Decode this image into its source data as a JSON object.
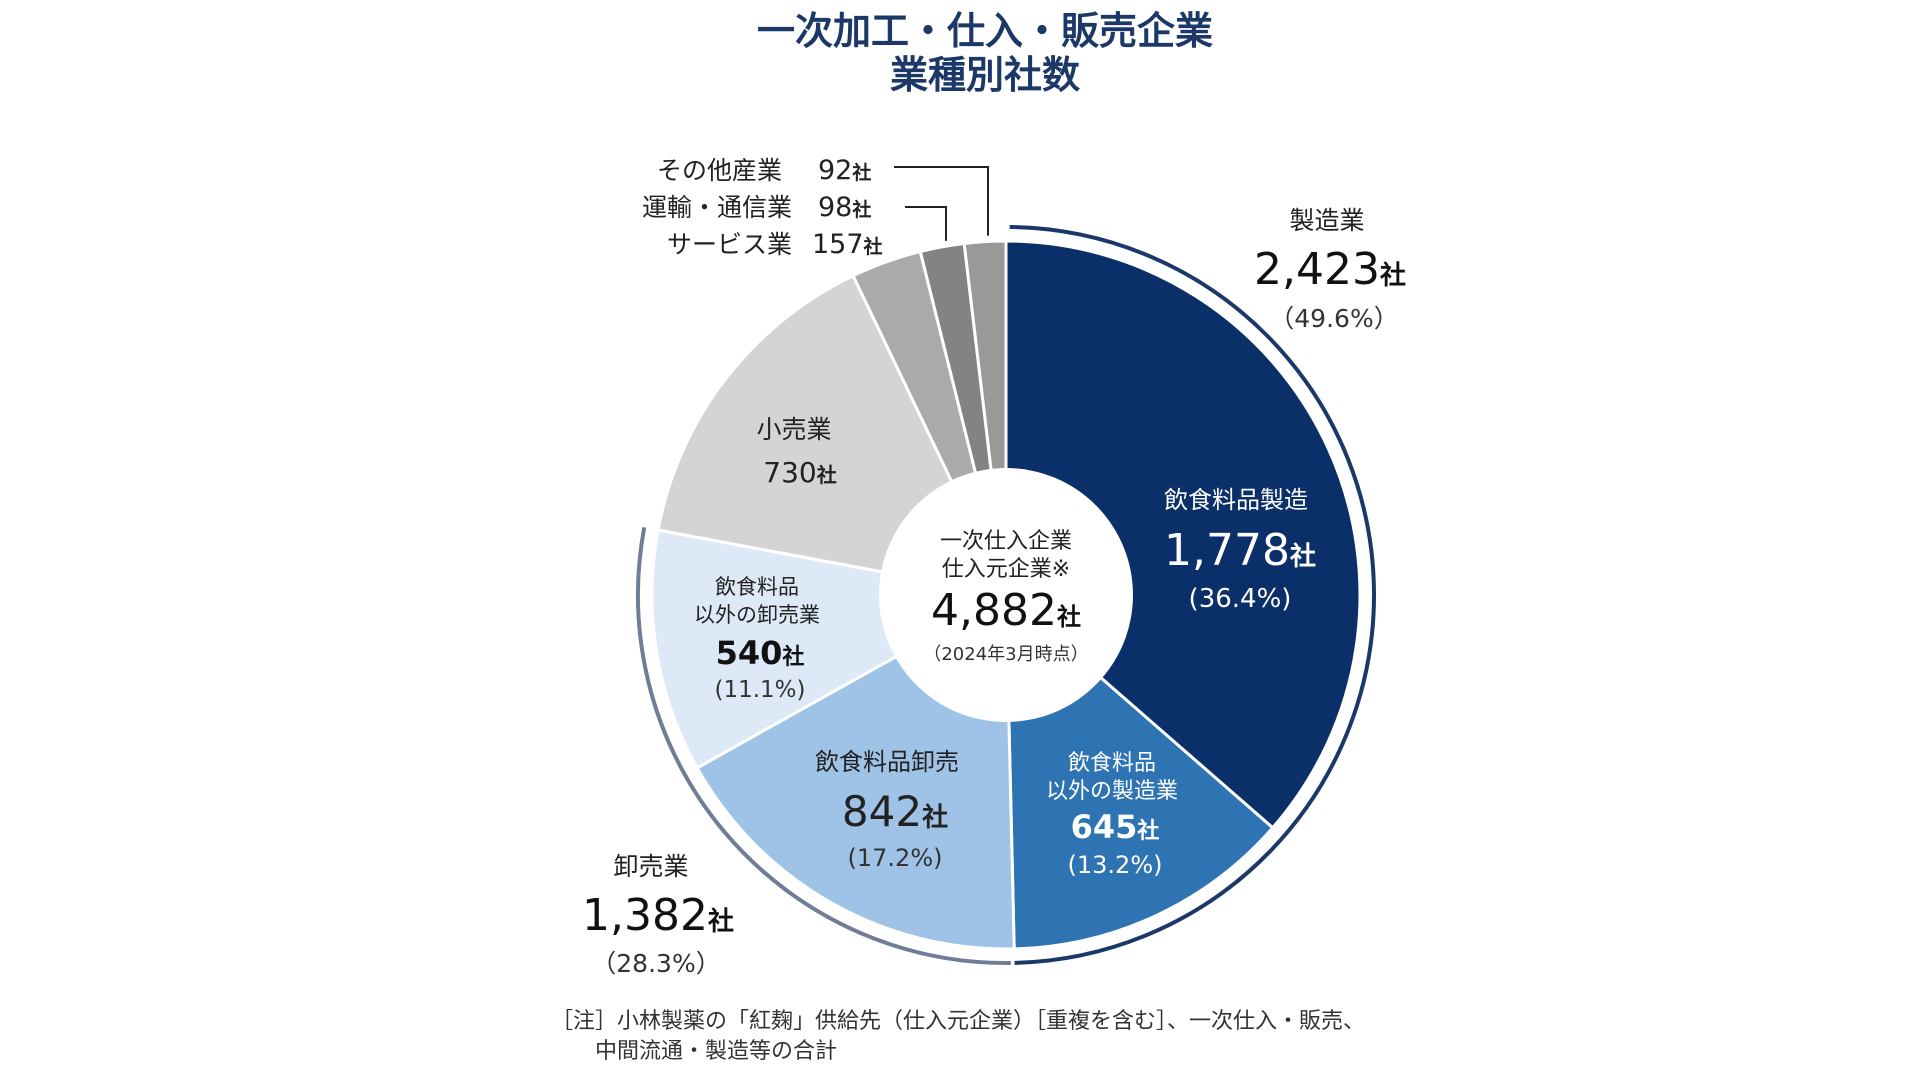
{
  "chart_data": {
    "type": "pie",
    "title": "一次加工・仕入・販売企業",
    "subtitle": "業種別社数",
    "total": {
      "line1": "一次仕入企業",
      "line2": "仕入元企業※",
      "value": "4,882",
      "unit": "社",
      "date": "（2024年3月時点）"
    },
    "slices": [
      {
        "name": "飲食料品製造",
        "value": 1778,
        "value_label": "1,778",
        "unit": "社",
        "pct": "(36.4%)",
        "color": "#0b2f68"
      },
      {
        "name": "飲食料品以外の製造業",
        "name_lines": [
          "飲食料品",
          "以外の製造業"
        ],
        "value": 645,
        "value_label": "645",
        "unit": "社",
        "pct": "(13.2%)",
        "color": "#2e73b2"
      },
      {
        "name": "飲食料品卸売",
        "value": 842,
        "value_label": "842",
        "unit": "社",
        "pct": "(17.2%)",
        "color": "#9fc3e7"
      },
      {
        "name": "飲食料品以外の卸売業",
        "name_lines": [
          "飲食料品",
          "以外の卸売業"
        ],
        "value": 540,
        "value_label": "540",
        "unit": "社",
        "pct": "(11.1%)",
        "color": "#dde9f6"
      },
      {
        "name": "小売業",
        "value": 730,
        "value_label": "730",
        "unit": "社",
        "pct": "",
        "color": "#d4d4d6"
      },
      {
        "name": "サービス業",
        "value": 157,
        "value_label": "157",
        "unit": "社",
        "pct": "",
        "color": "#aaaaac"
      },
      {
        "name": "運輸・通信業",
        "value": 98,
        "value_label": "98",
        "unit": "社",
        "pct": "",
        "color": "#838385"
      },
      {
        "name": "その他産業",
        "value": 92,
        "value_label": "92",
        "unit": "社",
        "pct": "",
        "color": "#999999"
      }
    ],
    "groups": [
      {
        "name": "製造業",
        "value_label": "2,423",
        "unit": "社",
        "pct": "（49.6%）",
        "color": "#1b3869"
      },
      {
        "name": "卸売業",
        "value_label": "1,382",
        "unit": "社",
        "pct": "（28.3%）",
        "color": "#6f7e96"
      }
    ],
    "note": {
      "line1": "［注］小林製薬の「紅麹」供給先（仕入元企業）［重複を含む］、一次仕入・販売、",
      "line2": "中間流通・製造等の合計"
    }
  }
}
